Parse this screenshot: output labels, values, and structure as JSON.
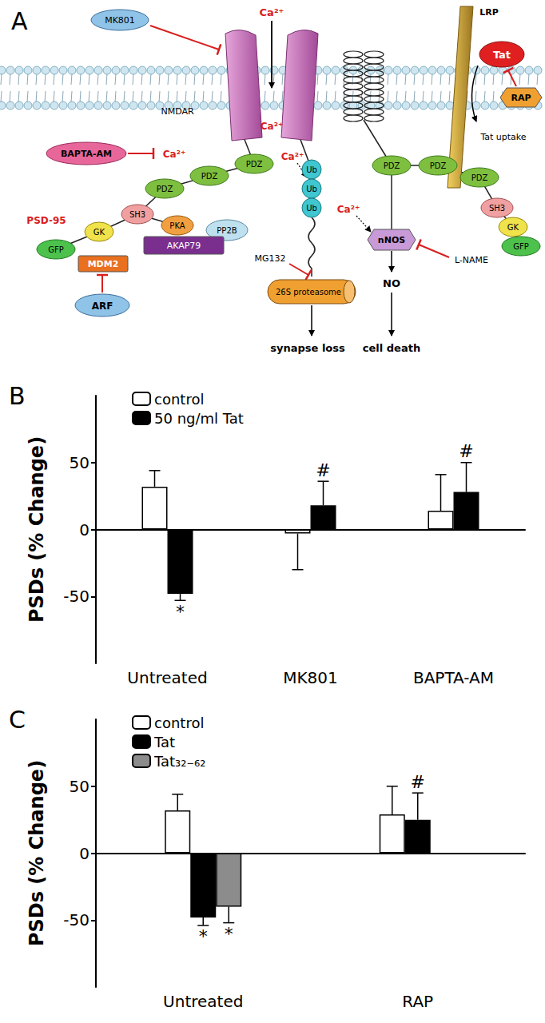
{
  "diagram": {
    "panel": "A",
    "nmdar": "NMDAR",
    "mk801": "MK801",
    "bapta": "BAPTA-AM",
    "calcium": [
      "Ca²⁺",
      "Ca²⁺",
      "Ca²⁺",
      "Ca²⁺",
      "Ca²⁺"
    ],
    "lrp": "LRP",
    "tat": "Tat",
    "rap": "RAP",
    "tat_uptake": "Tat uptake",
    "left_psd95": {
      "pdz": [
        "PDZ",
        "PDZ",
        "PDZ"
      ],
      "sh3": "SH3",
      "gk": "GK",
      "gfp": "GFP",
      "name": "PSD-95"
    },
    "right_psd95": {
      "pdz": [
        "PDZ",
        "PDZ",
        "PDZ"
      ],
      "sh3": "SH3",
      "gk": "GK",
      "gfp": "GFP"
    },
    "pka": "PKA",
    "pp2b": "PP2B",
    "akap79": "AKAP79",
    "mdm2": "MDM2",
    "arf": "ARF",
    "ubiquitin": [
      "Ub",
      "Ub",
      "Ub"
    ],
    "mg132": "MG132",
    "proteasome": "26S proteasome",
    "synapse_loss": "synapse loss",
    "nnos": "nNOS",
    "l_name": "L-NAME",
    "no": "NO",
    "cell_death": "cell death"
  },
  "chart_data": [
    {
      "type": "bar",
      "title": "B",
      "ylabel": "PSDs (% Change)",
      "categories": [
        "Untreated",
        "MK801",
        "BAPTA-AM"
      ],
      "series": [
        {
          "name": "control",
          "color": "#ffffff",
          "values": [
            32,
            -3,
            14
          ],
          "errors": [
            12,
            27,
            27
          ]
        },
        {
          "name": "50 ng/ml Tat",
          "color": "#000000",
          "values": [
            -48,
            18,
            28
          ],
          "errors": [
            5,
            18,
            22
          ],
          "annotations": [
            "*",
            "#",
            "#"
          ]
        }
      ],
      "ylim": [
        -100,
        100
      ],
      "yticks": [
        -50,
        0,
        50
      ],
      "grid": false,
      "legend": "top-left"
    },
    {
      "type": "bar",
      "title": "C",
      "ylabel": "PSDs (% Change)",
      "categories": [
        "Untreated",
        "RAP"
      ],
      "series": [
        {
          "name": "control",
          "color": "#ffffff",
          "values": [
            32,
            29
          ],
          "errors": [
            12,
            21
          ]
        },
        {
          "name": "Tat",
          "color": "#000000",
          "values": [
            -48,
            25
          ],
          "errors": [
            6,
            20
          ],
          "annotations": [
            "*",
            "#"
          ]
        },
        {
          "name": "Tat₃₂₋₆₂",
          "color": "#8c8c8c",
          "values": [
            -40,
            null
          ],
          "errors": [
            12,
            null
          ],
          "annotations": [
            "*",
            null
          ]
        }
      ],
      "ylim": [
        -100,
        100
      ],
      "yticks": [
        -50,
        0,
        50
      ],
      "grid": false,
      "legend": "top-left"
    }
  ]
}
